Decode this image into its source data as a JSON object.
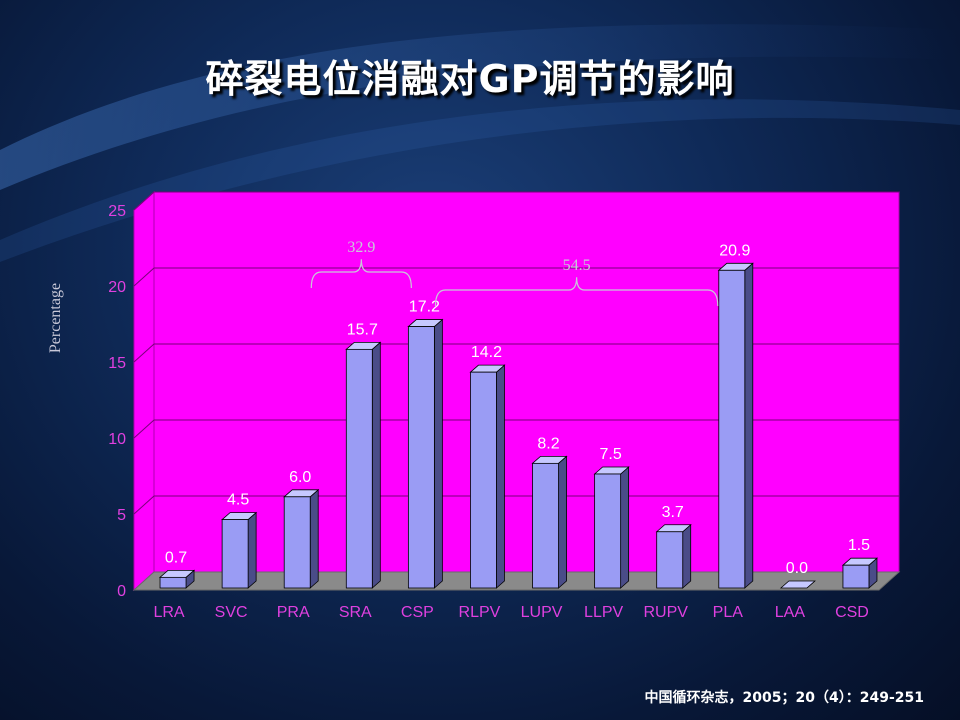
{
  "title": "碎裂电位消融对GP调节的影响",
  "citation": "中国循环杂志，2005；20（4）：249-251",
  "colors": {
    "plot_background": "#ff00ff",
    "bar_front": "#9a9cf4",
    "bar_side": "#4a4c88",
    "bar_top": "#c6c8ff",
    "floor": "#8a8a8a",
    "tick_label": "#e040e0",
    "data_label": "#ffffff",
    "annotation": "#c8c8d8"
  },
  "chart_data": {
    "type": "bar",
    "categories": [
      "LRA",
      "SVC",
      "PRA",
      "SRA",
      "CSP",
      "RLPV",
      "LUPV",
      "LLPV",
      "RUPV",
      "PLA",
      "LAA",
      "CSD"
    ],
    "values": [
      0.7,
      4.5,
      6.0,
      15.7,
      17.2,
      14.2,
      8.2,
      7.5,
      3.7,
      20.9,
      0.0,
      1.5
    ],
    "data_labels": [
      "0.7",
      "4.5",
      "6.0",
      "15.7",
      "17.2",
      "14.2",
      "8.2",
      "7.5",
      "3.7",
      "20.9",
      "0.0",
      "1.5"
    ],
    "title": "",
    "xlabel": "",
    "ylabel": "Percentage",
    "ylim": [
      0,
      25
    ],
    "yticks": [
      0,
      5,
      10,
      15,
      20,
      25
    ],
    "grid": true,
    "three_d": true,
    "annotations": [
      {
        "text": "32.9",
        "from_category": "SRA",
        "to_category": "CSP"
      },
      {
        "text": "54.5",
        "from_category": "RLPV",
        "to_category": "PLA"
      }
    ]
  }
}
